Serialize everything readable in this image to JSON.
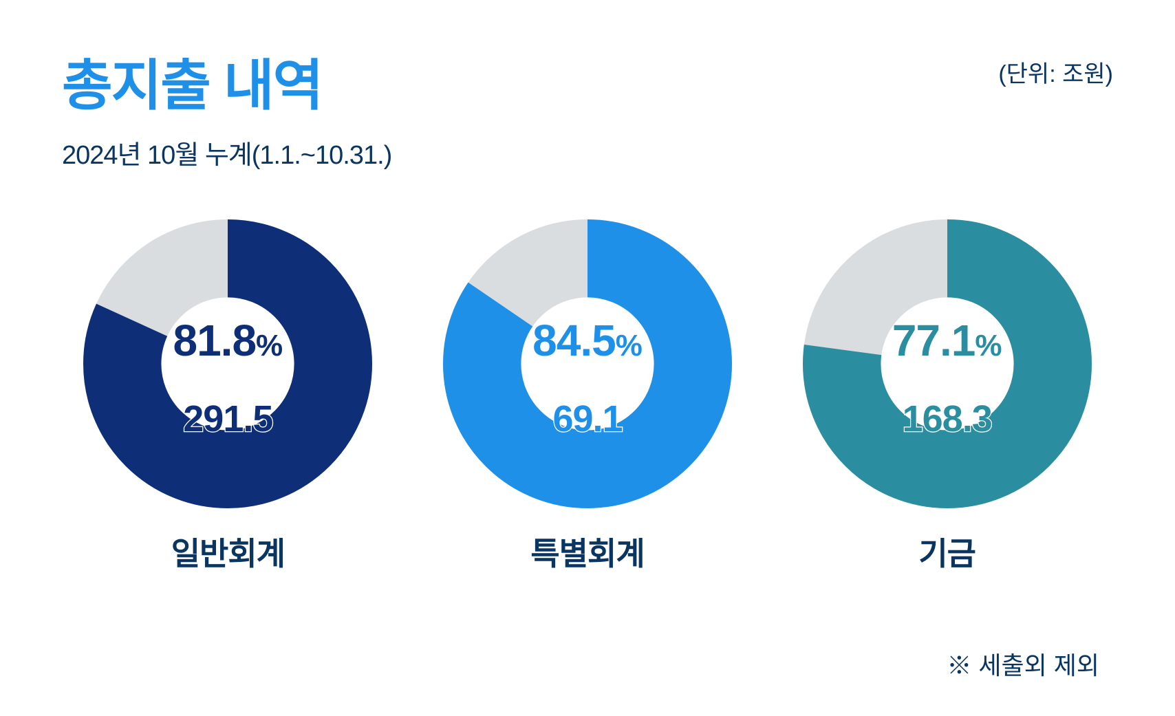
{
  "colors": {
    "title": "#1e90e8",
    "subtitle": "#0a3560",
    "unit": "#0a3560",
    "caption": "#0a3560",
    "footnote": "#0a3560",
    "track": "#d9dde0",
    "value_stroke": "#ffffff"
  },
  "header": {
    "title": "총지출 내역",
    "subtitle": "2024년 10월 누계(1.1.~10.31.)",
    "unit": "(단위: 조원)"
  },
  "donut": {
    "size": 420,
    "thickness_ratio": 0.27,
    "start_angle_deg": 0
  },
  "charts": [
    {
      "id": "general",
      "type": "donut",
      "percent": 81.8,
      "percent_label": "81.8",
      "value_label": "291.5",
      "caption": "일반회계",
      "color": "#0e2f77",
      "percent_text_color": "#0e2f77",
      "value_text_color": "#0e2f77"
    },
    {
      "id": "special",
      "type": "donut",
      "percent": 84.5,
      "percent_label": "84.5",
      "value_label": "69.1",
      "caption": "특별회계",
      "color": "#1e90e8",
      "percent_text_color": "#1e90e8",
      "value_text_color": "#1e90e8"
    },
    {
      "id": "fund",
      "type": "donut",
      "percent": 77.1,
      "percent_label": "77.1",
      "value_label": "168.3",
      "caption": "기금",
      "color": "#2a8ea0",
      "percent_text_color": "#2a8ea0",
      "value_text_color": "#2a8ea0"
    }
  ],
  "footnote": "※ 세출외 제외",
  "percent_symbol": "%"
}
